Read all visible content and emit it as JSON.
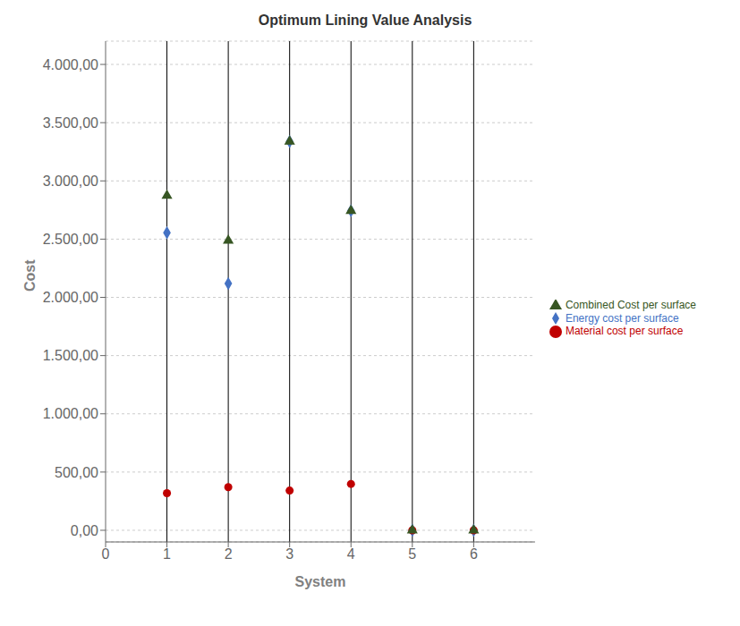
{
  "chart_data": {
    "type": "scatter",
    "title": "Optimum Lining Value Analysis",
    "xlabel": "System",
    "ylabel": "Cost",
    "x": [
      1,
      2,
      3,
      4,
      5,
      6
    ],
    "series": [
      {
        "name": "Energy cost per surface",
        "color": "#4472C4",
        "marker": "diamond",
        "values": [
          2554.74,
          2118.33,
          3338.4,
          2743.73,
          0,
          0
        ]
      },
      {
        "name": "Material cost per surface",
        "color": "#C00000",
        "marker": "circle",
        "values": [
          318.0,
          370.0,
          341.0,
          398.0,
          0,
          0
        ]
      },
      {
        "name": "Combined Cost per surface",
        "color": "#375623",
        "marker": "triangle",
        "values": [
          2872.74,
          2488.33,
          3338.4,
          2743.73,
          0,
          0
        ]
      }
    ],
    "xlim": [
      0,
      7
    ],
    "xticks": [
      0,
      1,
      2,
      3,
      4,
      5,
      6
    ],
    "ylim": [
      -100,
      4200
    ],
    "yticks": [
      {
        "value": 0,
        "label": "0,00"
      },
      {
        "value": 500,
        "label": "500,00"
      },
      {
        "value": 1000,
        "label": "1.000,00"
      },
      {
        "value": 1500,
        "label": "1.500,00"
      },
      {
        "value": 2000,
        "label": "2.000,00"
      },
      {
        "value": 2500,
        "label": "2.500,00"
      },
      {
        "value": 3000,
        "label": "3.000,00"
      },
      {
        "value": 3500,
        "label": "3.500,00"
      },
      {
        "value": 4000,
        "label": "4.000,00"
      }
    ],
    "grid": "y",
    "legend": "right"
  }
}
